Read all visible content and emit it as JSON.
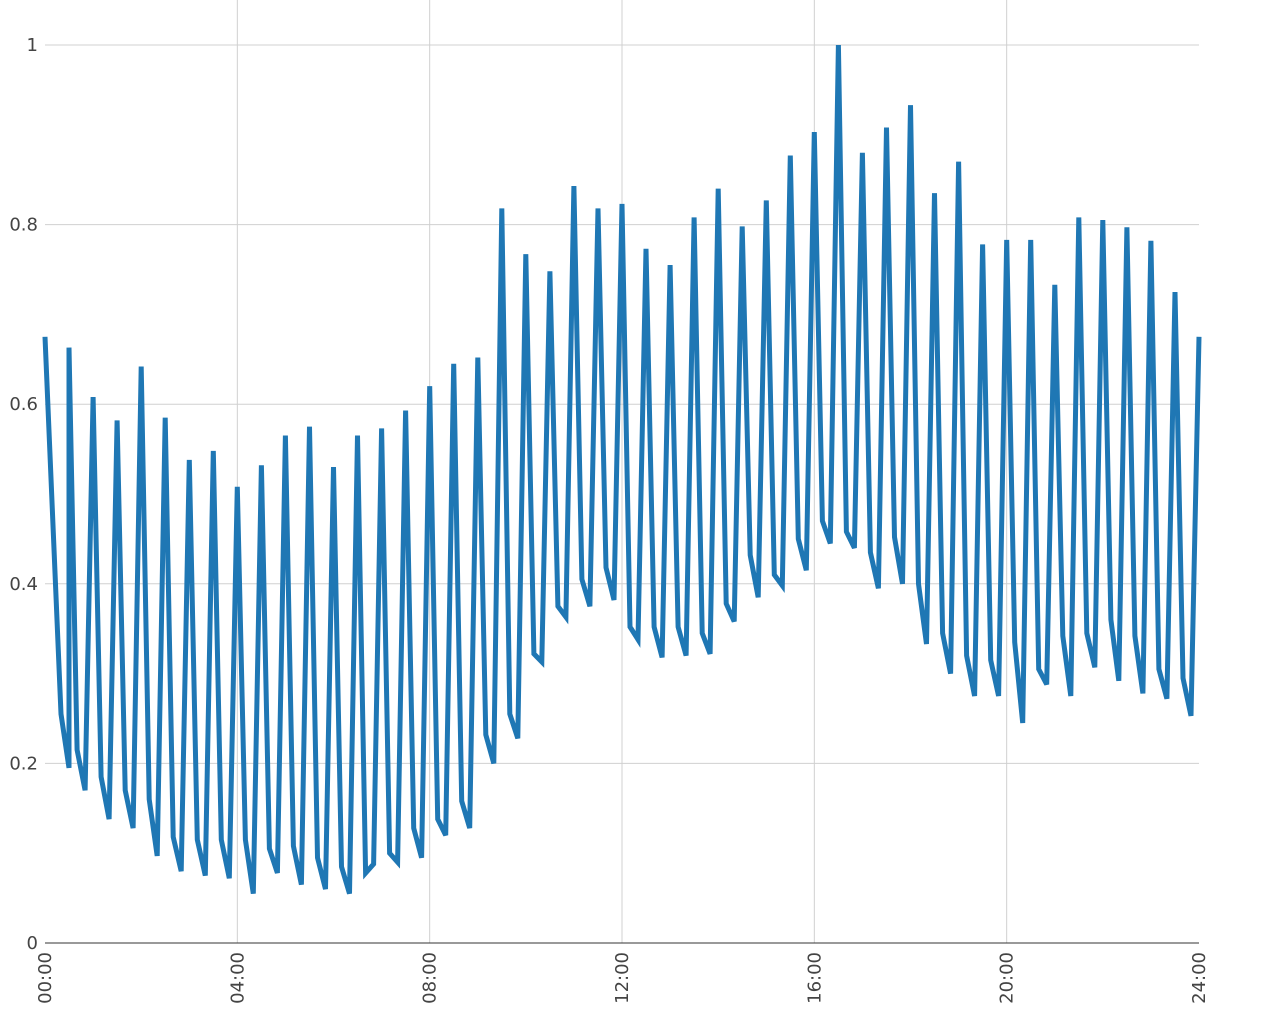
{
  "chart_data": {
    "type": "line",
    "title": "",
    "xlabel": "",
    "ylabel": "",
    "xlim": [
      0,
      24
    ],
    "ylim": [
      0,
      1
    ],
    "grid": true,
    "x_ticks": [
      "00:00",
      "04:00",
      "08:00",
      "12:00",
      "16:00",
      "20:00",
      "24:00"
    ],
    "y_ticks": [
      "0",
      "0.2",
      "0.4",
      "0.6",
      "0.8",
      "1"
    ],
    "series": [
      {
        "color": "#1f77b4",
        "points": [
          [
            0.0,
            0.675
          ],
          [
            0.333,
            0.255
          ],
          [
            0.5,
            0.195
          ],
          [
            0.5,
            0.195
          ],
          [
            0.5,
            0.663
          ],
          [
            0.667,
            0.215
          ],
          [
            0.833,
            0.17
          ],
          [
            1.0,
            0.608
          ],
          [
            1.167,
            0.185
          ],
          [
            1.333,
            0.138
          ],
          [
            1.5,
            0.582
          ],
          [
            1.667,
            0.17
          ],
          [
            1.833,
            0.128
          ],
          [
            2.0,
            0.642
          ],
          [
            2.167,
            0.16
          ],
          [
            2.333,
            0.097
          ],
          [
            2.5,
            0.585
          ],
          [
            2.667,
            0.118
          ],
          [
            2.833,
            0.08
          ],
          [
            3.0,
            0.538
          ],
          [
            3.167,
            0.115
          ],
          [
            3.333,
            0.075
          ],
          [
            3.5,
            0.548
          ],
          [
            3.667,
            0.115
          ],
          [
            3.833,
            0.072
          ],
          [
            4.0,
            0.508
          ],
          [
            4.167,
            0.115
          ],
          [
            4.333,
            0.055
          ],
          [
            4.5,
            0.532
          ],
          [
            4.667,
            0.105
          ],
          [
            4.833,
            0.078
          ],
          [
            5.0,
            0.565
          ],
          [
            5.167,
            0.108
          ],
          [
            5.333,
            0.065
          ],
          [
            5.5,
            0.575
          ],
          [
            5.667,
            0.095
          ],
          [
            5.833,
            0.06
          ],
          [
            6.0,
            0.53
          ],
          [
            6.167,
            0.085
          ],
          [
            6.333,
            0.055
          ],
          [
            6.5,
            0.565
          ],
          [
            6.667,
            0.078
          ],
          [
            6.833,
            0.088
          ],
          [
            7.0,
            0.573
          ],
          [
            7.167,
            0.1
          ],
          [
            7.333,
            0.09
          ],
          [
            7.5,
            0.593
          ],
          [
            7.667,
            0.128
          ],
          [
            7.833,
            0.095
          ],
          [
            8.0,
            0.62
          ],
          [
            8.167,
            0.138
          ],
          [
            8.333,
            0.12
          ],
          [
            8.5,
            0.645
          ],
          [
            8.667,
            0.158
          ],
          [
            8.833,
            0.128
          ],
          [
            9.0,
            0.652
          ],
          [
            9.167,
            0.232
          ],
          [
            9.333,
            0.2
          ],
          [
            9.5,
            0.818
          ],
          [
            9.667,
            0.255
          ],
          [
            9.833,
            0.228
          ],
          [
            10.0,
            0.767
          ],
          [
            10.167,
            0.322
          ],
          [
            10.333,
            0.313
          ],
          [
            10.5,
            0.748
          ],
          [
            10.667,
            0.375
          ],
          [
            10.833,
            0.363
          ],
          [
            11.0,
            0.843
          ],
          [
            11.167,
            0.405
          ],
          [
            11.333,
            0.375
          ],
          [
            11.5,
            0.818
          ],
          [
            11.667,
            0.418
          ],
          [
            11.833,
            0.382
          ],
          [
            12.0,
            0.823
          ],
          [
            12.167,
            0.352
          ],
          [
            12.333,
            0.338
          ],
          [
            12.5,
            0.773
          ],
          [
            12.667,
            0.352
          ],
          [
            12.833,
            0.318
          ],
          [
            13.0,
            0.755
          ],
          [
            13.167,
            0.352
          ],
          [
            13.333,
            0.32
          ],
          [
            13.5,
            0.808
          ],
          [
            13.667,
            0.345
          ],
          [
            13.833,
            0.322
          ],
          [
            14.0,
            0.84
          ],
          [
            14.167,
            0.378
          ],
          [
            14.333,
            0.358
          ],
          [
            14.5,
            0.798
          ],
          [
            14.667,
            0.432
          ],
          [
            14.833,
            0.385
          ],
          [
            15.0,
            0.827
          ],
          [
            15.167,
            0.41
          ],
          [
            15.333,
            0.398
          ],
          [
            15.5,
            0.877
          ],
          [
            15.667,
            0.45
          ],
          [
            15.833,
            0.415
          ],
          [
            16.0,
            0.903
          ],
          [
            16.167,
            0.47
          ],
          [
            16.333,
            0.445
          ],
          [
            16.5,
            1.0
          ],
          [
            16.667,
            0.458
          ],
          [
            16.833,
            0.44
          ],
          [
            17.0,
            0.88
          ],
          [
            17.167,
            0.435
          ],
          [
            17.333,
            0.395
          ],
          [
            17.5,
            0.908
          ],
          [
            17.667,
            0.452
          ],
          [
            17.833,
            0.4
          ],
          [
            18.0,
            0.933
          ],
          [
            18.167,
            0.4
          ],
          [
            18.333,
            0.333
          ],
          [
            18.5,
            0.835
          ],
          [
            18.667,
            0.345
          ],
          [
            18.833,
            0.3
          ],
          [
            19.0,
            0.87
          ],
          [
            19.167,
            0.32
          ],
          [
            19.333,
            0.275
          ],
          [
            19.5,
            0.778
          ],
          [
            19.667,
            0.315
          ],
          [
            19.833,
            0.275
          ],
          [
            20.0,
            0.783
          ],
          [
            20.167,
            0.335
          ],
          [
            20.333,
            0.245
          ],
          [
            20.5,
            0.783
          ],
          [
            20.667,
            0.305
          ],
          [
            20.833,
            0.288
          ],
          [
            21.0,
            0.733
          ],
          [
            21.167,
            0.342
          ],
          [
            21.333,
            0.275
          ],
          [
            21.5,
            0.808
          ],
          [
            21.667,
            0.345
          ],
          [
            21.833,
            0.307
          ],
          [
            22.0,
            0.805
          ],
          [
            22.167,
            0.36
          ],
          [
            22.333,
            0.292
          ],
          [
            22.5,
            0.797
          ],
          [
            22.667,
            0.342
          ],
          [
            22.833,
            0.278
          ],
          [
            23.0,
            0.782
          ],
          [
            23.167,
            0.305
          ],
          [
            23.333,
            0.272
          ],
          [
            23.5,
            0.725
          ],
          [
            23.667,
            0.295
          ],
          [
            23.833,
            0.253
          ],
          [
            24.0,
            0.675
          ]
        ]
      }
    ]
  }
}
